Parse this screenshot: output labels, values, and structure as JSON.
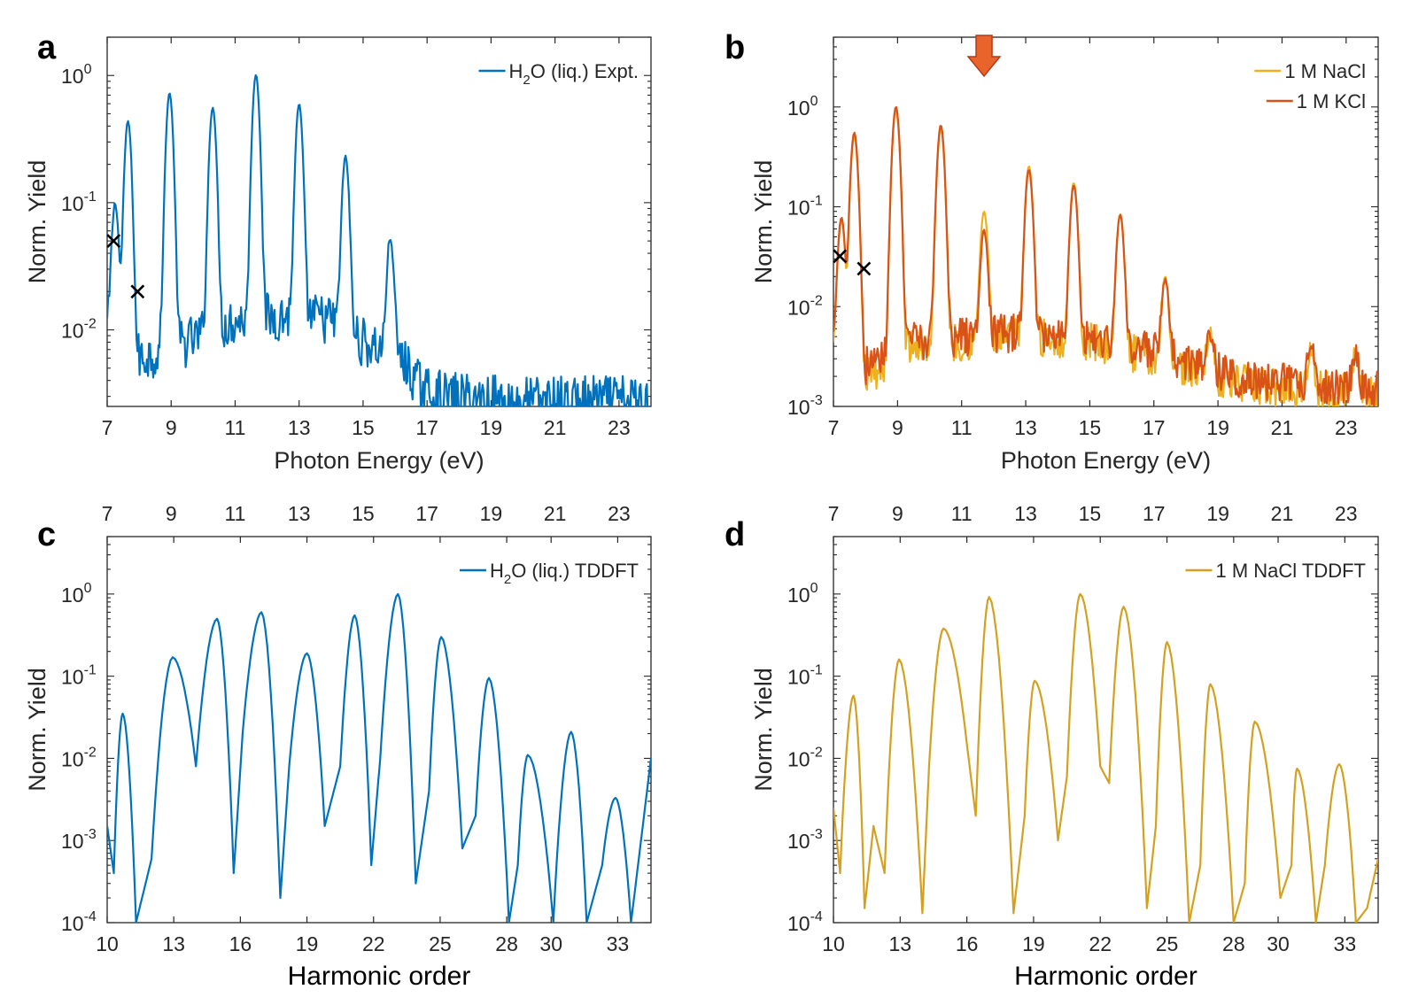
{
  "chart_data": [
    {
      "panel_label": "a",
      "type": "line",
      "xlabel": "Photon Energy (eV)",
      "ylabel": "Norm. Yield",
      "xlim": [
        7,
        24
      ],
      "ylim": [
        0.0025,
        2.0
      ],
      "y_scale": "log",
      "x_ticks": [
        7,
        9,
        11,
        13,
        15,
        17,
        19,
        21,
        23
      ],
      "y_ticks": [
        {
          "value": 0.01,
          "base": "10",
          "exp": "-2"
        },
        {
          "value": 0.1,
          "base": "10",
          "exp": "-1"
        },
        {
          "value": 1,
          "base": "10",
          "exp": "0"
        }
      ],
      "legend_position": "top-right",
      "series": [
        {
          "name": "H2O (liq.) Expt.",
          "name_parts": {
            "pre": "H",
            "sub": "2",
            "post": "O (liq.) Expt."
          },
          "color": "#0072BD",
          "peaks": [
            [
              7.25,
              0.09
            ],
            [
              7.65,
              0.43
            ],
            [
              8.95,
              0.72
            ],
            [
              10.3,
              0.55
            ],
            [
              11.65,
              1.0
            ],
            [
              13.0,
              0.58
            ],
            [
              14.45,
              0.22
            ],
            [
              15.85,
              0.046
            ]
          ],
          "background": [
            [
              7.0,
              0.01
            ],
            [
              8.0,
              0.006
            ],
            [
              9.5,
              0.008
            ],
            [
              11,
              0.012
            ],
            [
              13,
              0.013
            ],
            [
              14,
              0.012
            ],
            [
              15,
              0.008
            ],
            [
              16.2,
              0.006
            ],
            [
              16.8,
              0.0035
            ],
            [
              17.5,
              0.003
            ],
            [
              20,
              0.0028
            ],
            [
              24,
              0.0028
            ]
          ]
        }
      ],
      "markers": [
        {
          "x": 7.2,
          "y": 0.05,
          "symbol": "x"
        },
        {
          "x": 7.95,
          "y": 0.02,
          "symbol": "x"
        }
      ]
    },
    {
      "panel_label": "b",
      "type": "line",
      "xlabel": "Photon Energy (eV)",
      "ylabel": "Norm. Yield",
      "xlim": [
        7,
        24
      ],
      "ylim": [
        0.001,
        5.0
      ],
      "y_scale": "log",
      "x_ticks": [
        7,
        9,
        11,
        13,
        15,
        17,
        19,
        21,
        23
      ],
      "y_ticks": [
        {
          "value": 0.001,
          "base": "10",
          "exp": "-3"
        },
        {
          "value": 0.01,
          "base": "10",
          "exp": "-2"
        },
        {
          "value": 0.1,
          "base": "10",
          "exp": "-1"
        },
        {
          "value": 1,
          "base": "10",
          "exp": "0"
        }
      ],
      "legend_position": "top-right",
      "arrow_x": 11.7,
      "arrow_color": "#E8642A",
      "series": [
        {
          "name": "1 M NaCl",
          "color": "#EDB120",
          "peaks": [
            [
              7.25,
              0.07
            ],
            [
              7.65,
              0.5
            ],
            [
              8.95,
              0.95
            ],
            [
              10.35,
              0.6
            ],
            [
              11.7,
              0.085
            ],
            [
              13.1,
              0.25
            ],
            [
              14.5,
              0.17
            ],
            [
              15.95,
              0.08
            ],
            [
              17.35,
              0.017
            ],
            [
              18.75,
              0.0035
            ],
            [
              21.9,
              0.0022
            ],
            [
              23.3,
              0.002
            ]
          ],
          "background": [
            [
              7.0,
              0.003
            ],
            [
              8.0,
              0.002
            ],
            [
              9.5,
              0.004
            ],
            [
              11,
              0.0045
            ],
            [
              13,
              0.005
            ],
            [
              15,
              0.0045
            ],
            [
              17,
              0.003
            ],
            [
              18.5,
              0.0022
            ],
            [
              20,
              0.0016
            ],
            [
              24,
              0.0014
            ]
          ]
        },
        {
          "name": "1 M KCl",
          "color": "#D95319",
          "peaks": [
            [
              7.25,
              0.075
            ],
            [
              7.65,
              0.55
            ],
            [
              8.95,
              1.0
            ],
            [
              10.35,
              0.65
            ],
            [
              11.7,
              0.052
            ],
            [
              13.1,
              0.23
            ],
            [
              14.5,
              0.16
            ],
            [
              15.95,
              0.08
            ],
            [
              17.35,
              0.015
            ],
            [
              18.75,
              0.003
            ],
            [
              21.9,
              0.0025
            ],
            [
              23.3,
              0.0018
            ]
          ],
          "background": [
            [
              7.0,
              0.004
            ],
            [
              8.0,
              0.0025
            ],
            [
              9.5,
              0.0045
            ],
            [
              11,
              0.005
            ],
            [
              13,
              0.0055
            ],
            [
              15,
              0.005
            ],
            [
              17,
              0.0035
            ],
            [
              18.5,
              0.0025
            ],
            [
              20,
              0.0018
            ],
            [
              24,
              0.0015
            ]
          ]
        }
      ],
      "markers": [
        {
          "x": 7.2,
          "y": 0.032,
          "symbol": "x"
        },
        {
          "x": 7.95,
          "y": 0.024,
          "symbol": "x"
        }
      ]
    },
    {
      "panel_label": "c",
      "type": "line",
      "xlabel": "Harmonic order",
      "ylabel": "Norm. Yield",
      "xlim": [
        10,
        34.5
      ],
      "ylim": [
        0.0001,
        5.0
      ],
      "y_scale": "log",
      "x_ticks": [
        10,
        13,
        16,
        19,
        22,
        25,
        28,
        30,
        33
      ],
      "top_axis_ticks": [
        7,
        9,
        11,
        13,
        15,
        17,
        19,
        21,
        23
      ],
      "top_axis_range": [
        7,
        24
      ],
      "y_ticks": [
        {
          "value": 0.0001,
          "base": "10",
          "exp": "-4"
        },
        {
          "value": 0.001,
          "base": "10",
          "exp": "-3"
        },
        {
          "value": 0.01,
          "base": "10",
          "exp": "-2"
        },
        {
          "value": 0.1,
          "base": "10",
          "exp": "-1"
        },
        {
          "value": 1,
          "base": "10",
          "exp": "0"
        }
      ],
      "legend_position": "top-right",
      "series": [
        {
          "name": "H2O (liq.) TDDFT",
          "name_parts": {
            "pre": "H",
            "sub": "2",
            "post": "O (liq.) TDDFT"
          },
          "color": "#0072BD",
          "peaks": [
            [
              10.7,
              0.035
            ],
            [
              12.95,
              0.17
            ],
            [
              14.95,
              0.5
            ],
            [
              16.95,
              0.6
            ],
            [
              19.0,
              0.19
            ],
            [
              21.15,
              0.55
            ],
            [
              23.1,
              1.0
            ],
            [
              25.05,
              0.3
            ],
            [
              27.2,
              0.095
            ],
            [
              28.95,
              0.011
            ],
            [
              30.9,
              0.021
            ],
            [
              32.9,
              0.0033
            ]
          ],
          "troughs": [
            [
              10.0,
              0.0015
            ],
            [
              10.3,
              0.0004
            ],
            [
              11.3,
              0.0001
            ],
            [
              12.0,
              0.0006
            ],
            [
              14.0,
              0.008
            ],
            [
              15.7,
              0.0004
            ],
            [
              16.1,
              0.02
            ],
            [
              17.8,
              0.0002
            ],
            [
              18.2,
              0.008
            ],
            [
              19.8,
              0.0015
            ],
            [
              20.5,
              0.008
            ],
            [
              21.9,
              0.0005
            ],
            [
              22.3,
              0.01
            ],
            [
              23.9,
              0.0003
            ],
            [
              24.5,
              0.004
            ],
            [
              26.0,
              0.0008
            ],
            [
              26.6,
              0.002
            ],
            [
              28.1,
              0.0001
            ],
            [
              28.5,
              0.0005
            ],
            [
              30.1,
              0.0001
            ],
            [
              31.6,
              0.0001
            ],
            [
              32.3,
              0.0005
            ],
            [
              33.6,
              0.0001
            ],
            [
              34.5,
              0.01
            ]
          ]
        }
      ]
    },
    {
      "panel_label": "d",
      "type": "line",
      "xlabel": "Harmonic order",
      "ylabel": "Norm. Yield",
      "xlim": [
        10,
        34.5
      ],
      "ylim": [
        0.0001,
        5.0
      ],
      "y_scale": "log",
      "x_ticks": [
        10,
        13,
        16,
        19,
        22,
        25,
        28,
        30,
        33
      ],
      "top_axis_ticks": [
        7,
        9,
        11,
        13,
        15,
        17,
        19,
        21,
        23
      ],
      "top_axis_range": [
        7,
        24
      ],
      "y_ticks": [
        {
          "value": 0.0001,
          "base": "10",
          "exp": "-4"
        },
        {
          "value": 0.001,
          "base": "10",
          "exp": "-3"
        },
        {
          "value": 0.01,
          "base": "10",
          "exp": "-2"
        },
        {
          "value": 0.1,
          "base": "10",
          "exp": "-1"
        },
        {
          "value": 1,
          "base": "10",
          "exp": "0"
        }
      ],
      "legend_position": "top-right",
      "series": [
        {
          "name": "1 M NaCl TDDFT",
          "color": "#D4A020",
          "peaks": [
            [
              10.9,
              0.058
            ],
            [
              12.95,
              0.16
            ],
            [
              14.95,
              0.38
            ],
            [
              17.0,
              0.92
            ],
            [
              19.05,
              0.088
            ],
            [
              21.1,
              1.0
            ],
            [
              23.05,
              0.7
            ],
            [
              25.0,
              0.26
            ],
            [
              26.95,
              0.08
            ],
            [
              28.95,
              0.028
            ],
            [
              30.85,
              0.0075
            ],
            [
              32.75,
              0.0085
            ]
          ],
          "troughs": [
            [
              10.0,
              0.0025
            ],
            [
              10.3,
              0.0004
            ],
            [
              11.4,
              0.00015
            ],
            [
              11.8,
              0.0015
            ],
            [
              12.3,
              0.0004
            ],
            [
              14.0,
              0.00013
            ],
            [
              14.3,
              0.008
            ],
            [
              16.0,
              0.015
            ],
            [
              16.4,
              0.002
            ],
            [
              18.1,
              0.00013
            ],
            [
              18.6,
              0.002
            ],
            [
              20.1,
              0.001
            ],
            [
              20.5,
              0.006
            ],
            [
              22.0,
              0.008
            ],
            [
              22.4,
              0.005
            ],
            [
              24.1,
              0.00015
            ],
            [
              24.5,
              0.0015
            ],
            [
              26.0,
              0.0001
            ],
            [
              26.5,
              0.0005
            ],
            [
              28.0,
              0.0001
            ],
            [
              28.5,
              0.0003
            ],
            [
              30.1,
              0.0002
            ],
            [
              30.6,
              0.0005
            ],
            [
              31.7,
              0.0001
            ],
            [
              32.1,
              0.0005
            ],
            [
              33.5,
              0.0001
            ],
            [
              34.0,
              0.00015
            ],
            [
              34.5,
              0.0006
            ]
          ]
        }
      ]
    }
  ]
}
